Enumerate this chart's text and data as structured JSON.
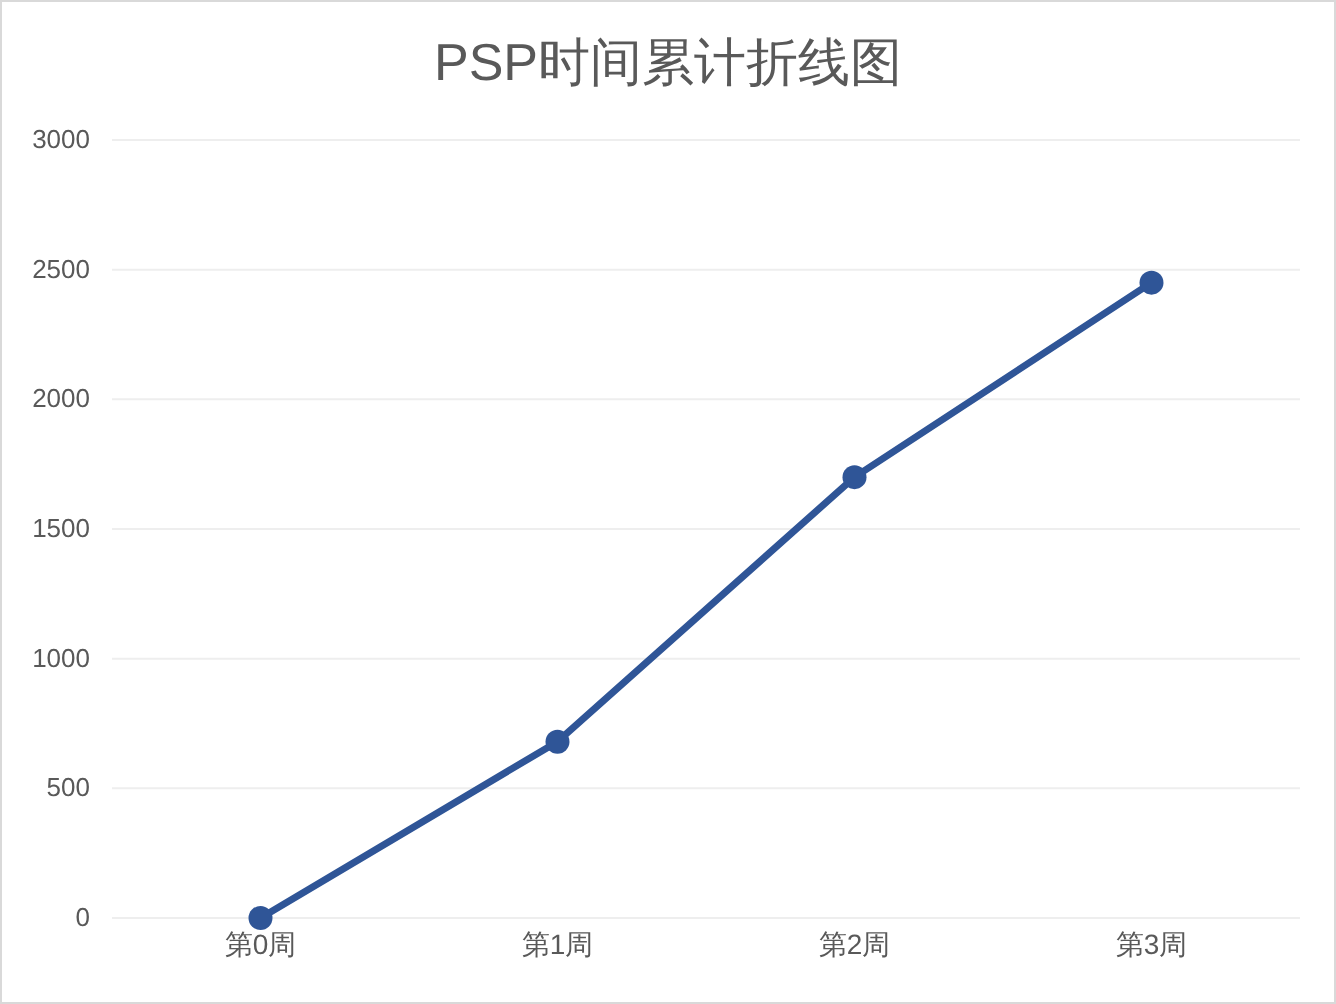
{
  "chart_data": {
    "type": "line",
    "title": "PSP时间累计折线图",
    "categories": [
      "第0周",
      "第1周",
      "第2周",
      "第3周"
    ],
    "series": [
      {
        "color": "#2f5597",
        "values": [
          0,
          680,
          1700,
          2450
        ]
      }
    ],
    "ylim": [
      0,
      3000
    ],
    "yticks": [
      0,
      500,
      1000,
      1500,
      2000,
      2500,
      3000
    ],
    "grid": "y",
    "marker": "circle",
    "line_style": "solid"
  }
}
